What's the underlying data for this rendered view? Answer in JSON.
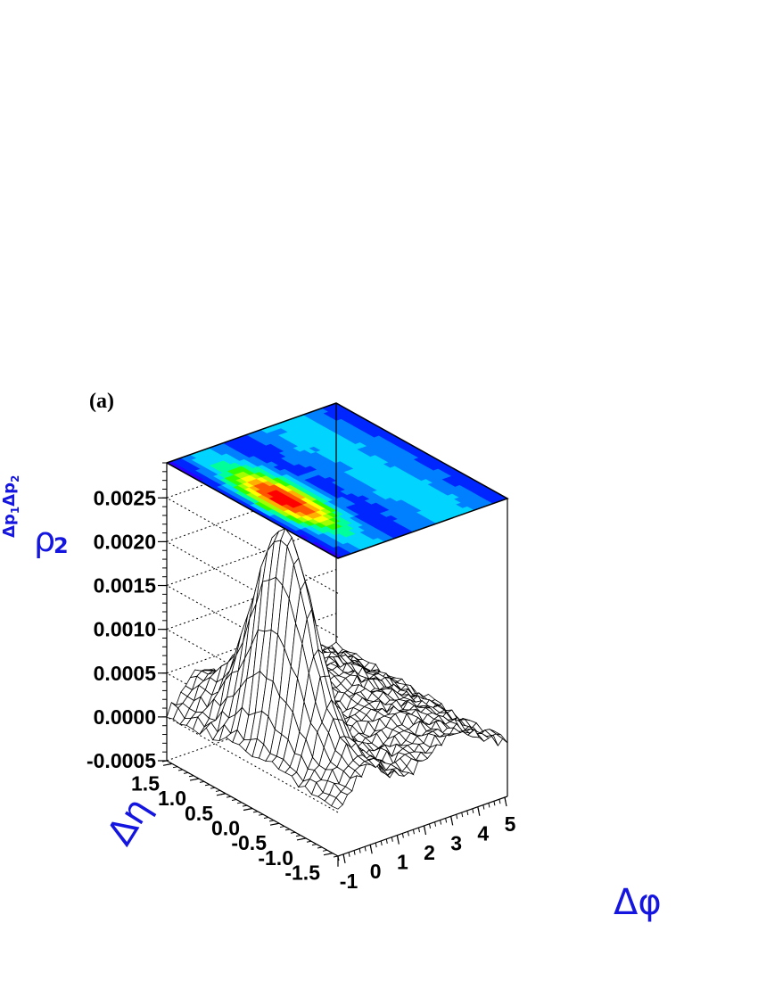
{
  "panel_label": "(a)",
  "chart_data": {
    "type": "surface",
    "title": "",
    "zlabel": {
      "base": "ρ",
      "sub": "2",
      "sup": "Δp",
      "sup_sub1": "1",
      "sup_mid": "Δp",
      "sup_sub2": "2"
    },
    "xlabel": "Δφ",
    "ylabel": "Δη",
    "z_ticks": [
      "-0.0005",
      "0.0000",
      "0.0005",
      "0.0010",
      "0.0015",
      "0.0020",
      "0.0025"
    ],
    "z_tick_values": [
      -0.0005,
      0.0,
      0.0005,
      0.001,
      0.0015,
      0.002,
      0.0025
    ],
    "x_ticks": [
      "-1",
      "0",
      "1",
      "2",
      "3",
      "4",
      "5"
    ],
    "x_tick_values": [
      -1,
      0,
      1,
      2,
      3,
      4,
      5
    ],
    "y_ticks": [
      "1.5",
      "1.0",
      "0.5",
      "0.0",
      "-0.5",
      "-1.0",
      "-1.5"
    ],
    "y_tick_values": [
      1.5,
      1.0,
      0.5,
      0.0,
      -0.5,
      -1.0,
      -1.5
    ],
    "xlim": [
      -1.2,
      5.1
    ],
    "ylim": [
      -1.6,
      1.6
    ],
    "zlim": [
      -0.0005,
      0.0029
    ],
    "near_side_peak": {
      "dphi": 0.0,
      "deta": 0.0,
      "z": 0.0022,
      "width_phi": 0.45,
      "width_eta": 0.5
    },
    "away_side_ridge": {
      "dphi_from": 2.2,
      "dphi_to": 4.2,
      "z": 0.0004
    },
    "baseline": 0.0,
    "contour_colors": [
      "#7f00ff",
      "#2a00ff",
      "#0026ff",
      "#0080ff",
      "#00d4ff",
      "#00ff9a",
      "#30ff00",
      "#a0ff00",
      "#ffff00",
      "#ffb000",
      "#ff5500",
      "#ff0000"
    ],
    "grid": "dotted"
  }
}
